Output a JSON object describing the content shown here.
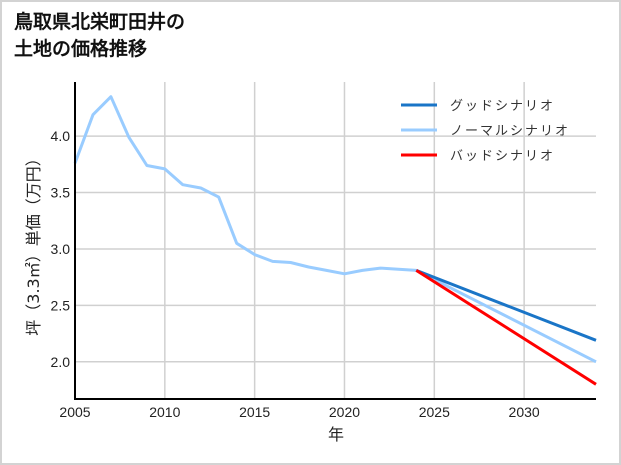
{
  "title_line1": "鳥取県北栄町田井の",
  "title_line2": "土地の価格推移",
  "chart_data": {
    "type": "line",
    "title": "鳥取県北栄町田井の土地の価格推移",
    "xlabel": "年",
    "ylabel": "坪（3.3㎡）単価（万円）",
    "xlim": [
      2005,
      2034
    ],
    "ylim": [
      1.67,
      4.48
    ],
    "xticks": [
      2005,
      2010,
      2015,
      2020,
      2025,
      2030
    ],
    "yticks": [
      2.0,
      2.5,
      3.0,
      3.5,
      4.0
    ],
    "grid": true,
    "legend_position": "upper right",
    "series": [
      {
        "name": "グッドシナリオ",
        "color": "#1a75c7",
        "x": [
          2024,
          2034
        ],
        "values": [
          2.81,
          2.19
        ]
      },
      {
        "name": "ノーマルシナリオ",
        "color": "#99ccff",
        "x": [
          2005,
          2006,
          2007,
          2008,
          2009,
          2010,
          2011,
          2012,
          2013,
          2014,
          2015,
          2016,
          2017,
          2018,
          2019,
          2020,
          2021,
          2022,
          2023,
          2024,
          2034
        ],
        "values": [
          3.76,
          4.19,
          4.35,
          3.99,
          3.74,
          3.71,
          3.57,
          3.54,
          3.46,
          3.05,
          2.95,
          2.89,
          2.88,
          2.84,
          2.81,
          2.78,
          2.81,
          2.83,
          2.82,
          2.81,
          2.0
        ]
      },
      {
        "name": "バッドシナリオ",
        "color": "#ff0000",
        "x": [
          2024,
          2034
        ],
        "values": [
          2.81,
          1.8
        ]
      }
    ]
  }
}
